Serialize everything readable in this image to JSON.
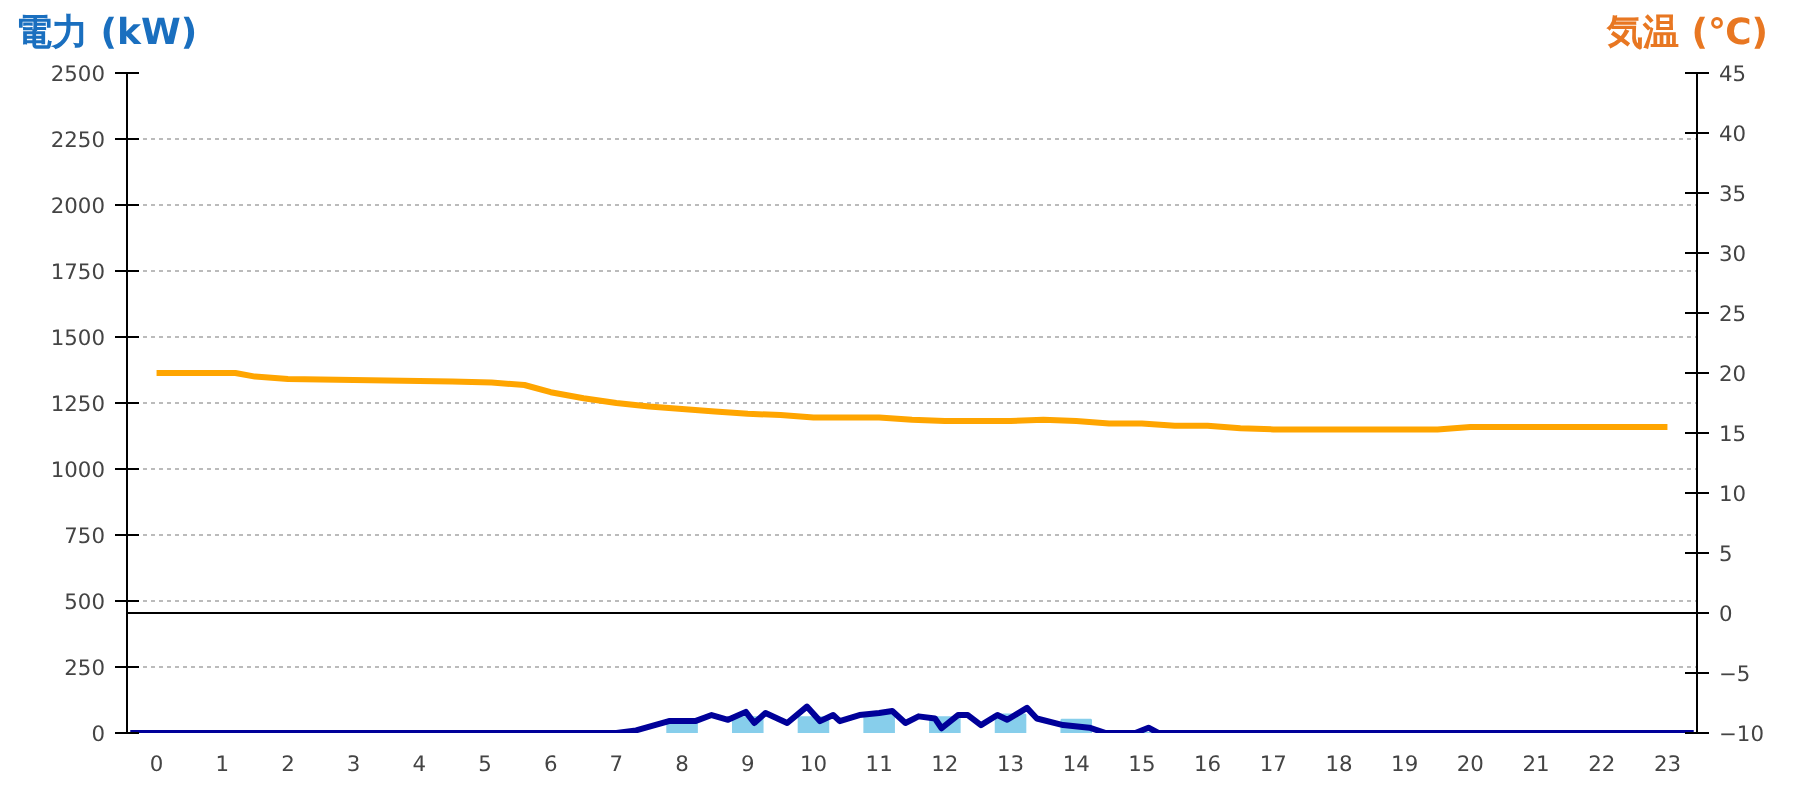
{
  "chart_data": {
    "type": "line",
    "ylabel": "電力 (kW)",
    "y2label": "気温 (℃)",
    "xlim": [
      -0.45,
      23.45
    ],
    "xticks": [
      0,
      1,
      2,
      3,
      4,
      5,
      6,
      7,
      8,
      9,
      10,
      11,
      12,
      13,
      14,
      15,
      16,
      17,
      18,
      19,
      20,
      21,
      22,
      23
    ],
    "ylim": [
      0,
      2500
    ],
    "yticks": [
      0,
      250,
      500,
      750,
      1000,
      1250,
      1500,
      1750,
      2000,
      2250,
      2500
    ],
    "y2lim": [
      -10,
      45
    ],
    "y2ticks": [
      -10,
      -5,
      0,
      5,
      10,
      15,
      20,
      25,
      30,
      35,
      40,
      45
    ],
    "grid": "y",
    "line_style": "solid",
    "ref_lines": [
      {
        "axis": "y2",
        "value": 0,
        "color": "#000000"
      }
    ],
    "series": [
      {
        "type": "bar",
        "color": "#87ceeb",
        "x": [
          0,
          1,
          2,
          3,
          4,
          5,
          6,
          7,
          8,
          9,
          10,
          11,
          12,
          13,
          14,
          15,
          16,
          17,
          18,
          19,
          20,
          21,
          22,
          23
        ],
        "values": [
          0,
          0,
          0,
          0,
          0,
          0,
          0,
          0,
          50,
          60,
          60,
          75,
          60,
          70,
          50,
          0,
          0,
          0,
          0,
          0,
          0,
          0,
          0,
          0
        ]
      },
      {
        "type": "line",
        "color": "#000099",
        "x": [
          -0.4,
          7.0,
          7.3,
          7.8,
          8.2,
          8.45,
          8.7,
          8.97,
          9.1,
          9.27,
          9.6,
          9.9,
          10.1,
          10.3,
          10.4,
          10.7,
          11.0,
          11.2,
          11.4,
          11.6,
          11.85,
          11.95,
          12.2,
          12.35,
          12.55,
          12.8,
          12.95,
          13.25,
          13.4,
          13.8,
          14.2,
          14.45,
          14.9,
          15.1,
          15.25,
          23.4
        ],
        "values": [
          0,
          0,
          10,
          45,
          45,
          68,
          50,
          80,
          38,
          76,
          38,
          100,
          45,
          68,
          45,
          68,
          76,
          83,
          38,
          63,
          55,
          18,
          68,
          68,
          30,
          68,
          50,
          95,
          55,
          30,
          20,
          0,
          0,
          20,
          0,
          0
        ]
      },
      {
        "type": "line",
        "color": "#ffa500",
        "axis": "y2",
        "x": [
          0,
          1.2,
          1.5,
          2,
          4.5,
          5.1,
          5.6,
          6,
          6.5,
          7,
          7.5,
          8,
          8.5,
          9,
          9.5,
          10,
          11,
          11.5,
          12,
          13,
          13.5,
          14,
          14.5,
          15,
          15.5,
          16,
          16.5,
          17,
          19.5,
          20,
          23
        ],
        "values": [
          20,
          20,
          19.7,
          19.5,
          19.3,
          19.2,
          19.0,
          18.4,
          17.9,
          17.5,
          17.2,
          17.0,
          16.8,
          16.6,
          16.5,
          16.3,
          16.3,
          16.1,
          16,
          16,
          16.1,
          16.0,
          15.8,
          15.8,
          15.6,
          15.6,
          15.4,
          15.3,
          15.3,
          15.5,
          15.5
        ]
      }
    ]
  }
}
